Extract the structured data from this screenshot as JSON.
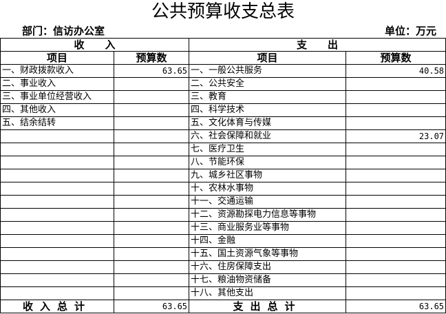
{
  "title": "公共预算收支总表",
  "department": "部门：信访办公室",
  "unit": "单位：万元",
  "headers": {
    "income": "收　　入",
    "expense": "支　　出",
    "item": "项目",
    "amount": "预算数"
  },
  "rows": [
    {
      "income_item": "一、财政拨款收入",
      "income_amount": "63.65",
      "expense_item": "一、一般公共服务",
      "expense_amount": "40.58"
    },
    {
      "income_item": "二、事业收入",
      "income_amount": "",
      "expense_item": "二、公共安全",
      "expense_amount": ""
    },
    {
      "income_item": "三、事业单位经营收入",
      "income_amount": "",
      "expense_item": "三、教育",
      "expense_amount": ""
    },
    {
      "income_item": "四、其他收入",
      "income_amount": "",
      "expense_item": "四、科学技术",
      "expense_amount": ""
    },
    {
      "income_item": "五、结余结转",
      "income_amount": "",
      "expense_item": "五、文化体育与传媒",
      "expense_amount": ""
    },
    {
      "income_item": "",
      "income_amount": "",
      "expense_item": "六、社会保障和就业",
      "expense_amount": "23.07"
    },
    {
      "income_item": "",
      "income_amount": "",
      "expense_item": "七、医疗卫生",
      "expense_amount": ""
    },
    {
      "income_item": "",
      "income_amount": "",
      "expense_item": "八、节能环保",
      "expense_amount": ""
    },
    {
      "income_item": "",
      "income_amount": "",
      "expense_item": "九、城乡社区事物",
      "expense_amount": ""
    },
    {
      "income_item": "",
      "income_amount": "",
      "expense_item": "十、农林水事物",
      "expense_amount": ""
    },
    {
      "income_item": "",
      "income_amount": "",
      "expense_item": "十一、交通运输",
      "expense_amount": ""
    },
    {
      "income_item": "",
      "income_amount": "",
      "expense_item": "十二、资源勘探电力信息等事物",
      "expense_amount": ""
    },
    {
      "income_item": "",
      "income_amount": "",
      "expense_item": "十三、商业服务业等事物",
      "expense_amount": ""
    },
    {
      "income_item": "",
      "income_amount": "",
      "expense_item": "十四、金融",
      "expense_amount": ""
    },
    {
      "income_item": "",
      "income_amount": "",
      "expense_item": "十五、国土资源气象等事物",
      "expense_amount": ""
    },
    {
      "income_item": "",
      "income_amount": "",
      "expense_item": "十六、住房保障支出",
      "expense_amount": ""
    },
    {
      "income_item": "",
      "income_amount": "",
      "expense_item": "十七、粮油物资储备",
      "expense_amount": ""
    },
    {
      "income_item": "",
      "income_amount": "",
      "expense_item": "十八、其他支出",
      "expense_amount": ""
    }
  ],
  "totals": {
    "income_label": "收入总计",
    "income_amount": "63.65",
    "expense_label": "支出总计",
    "expense_amount": "63.65"
  }
}
